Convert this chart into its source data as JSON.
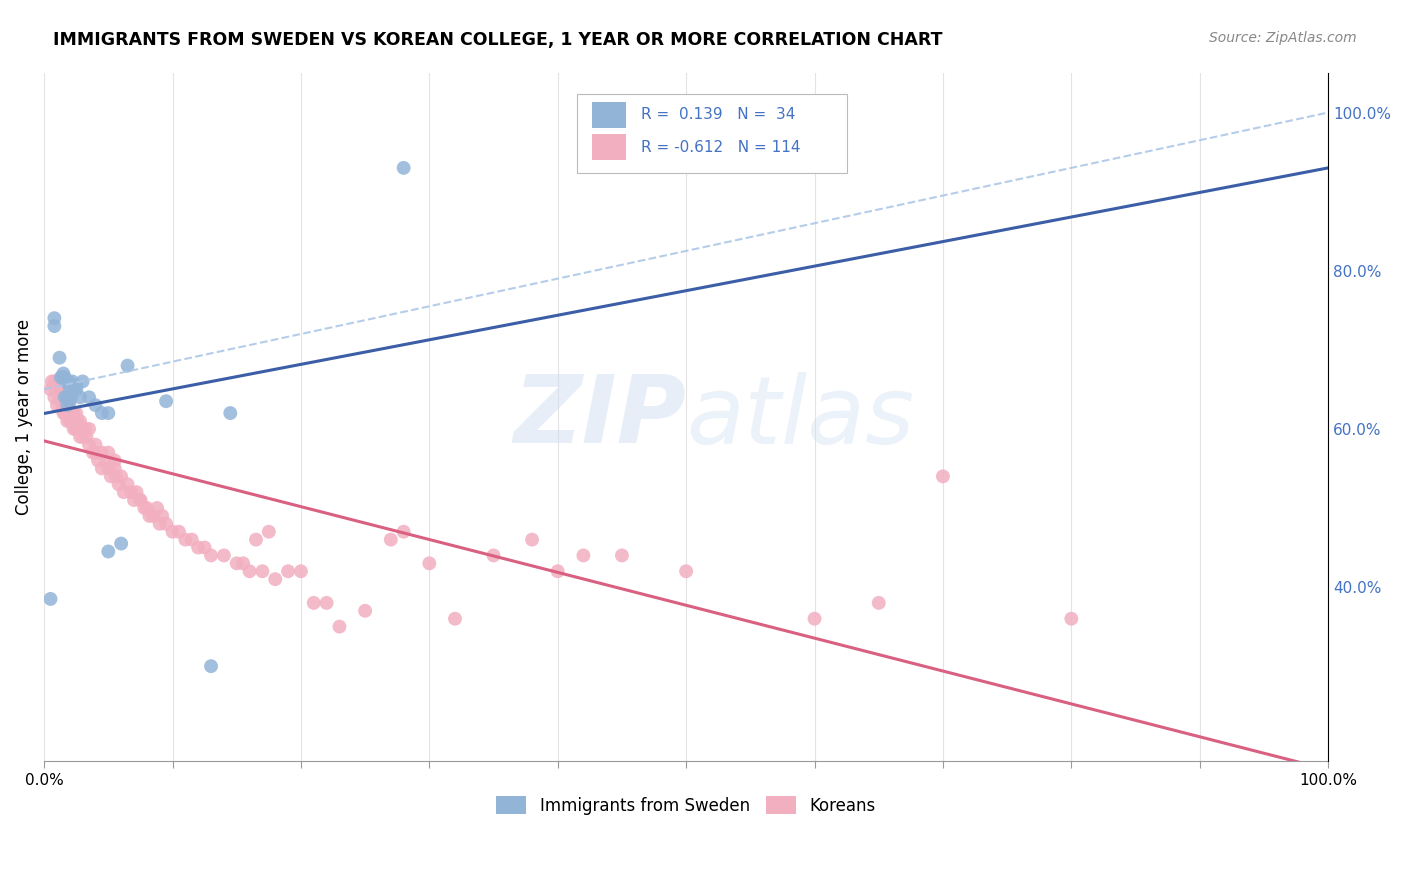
{
  "title": "IMMIGRANTS FROM SWEDEN VS KOREAN COLLEGE, 1 YEAR OR MORE CORRELATION CHART",
  "source": "Source: ZipAtlas.com",
  "ylabel": "College, 1 year or more",
  "right_yticks": [
    "40.0%",
    "60.0%",
    "80.0%",
    "100.0%"
  ],
  "right_ytick_vals": [
    40.0,
    60.0,
    80.0,
    100.0
  ],
  "watermark": "ZIPatlas",
  "blue_color": "#92b4d7",
  "pink_color": "#f2afc0",
  "blue_line_color": "#3b5ea6",
  "pink_line_color": "#d96080",
  "blue_dashed_color": "#aec8e8",
  "legend_text_color": "#4472c4",
  "sweden_points_x": [
    0.5,
    0.8,
    0.8,
    1.2,
    1.3,
    1.5,
    1.5,
    1.6,
    1.6,
    1.7,
    1.8,
    1.8,
    1.9,
    2.0,
    2.0,
    2.0,
    2.1,
    2.2,
    2.2,
    2.5,
    2.5,
    2.8,
    3.0,
    3.5,
    4.0,
    4.5,
    5.0,
    5.0,
    6.0,
    6.5,
    9.5,
    13.0,
    14.5,
    28.0
  ],
  "sweden_points_y": [
    38.5,
    73.0,
    74.0,
    69.0,
    66.5,
    66.5,
    67.0,
    64.0,
    66.5,
    66.0,
    63.0,
    64.0,
    66.0,
    63.5,
    64.0,
    65.0,
    64.0,
    66.0,
    65.5,
    65.0,
    65.5,
    64.0,
    66.0,
    64.0,
    63.0,
    62.0,
    62.0,
    44.5,
    45.5,
    68.0,
    63.5,
    30.0,
    62.0,
    93.0
  ],
  "korean_points_x": [
    0.5,
    0.6,
    0.8,
    0.8,
    0.9,
    1.0,
    1.0,
    1.2,
    1.3,
    1.3,
    1.4,
    1.5,
    1.5,
    1.5,
    1.5,
    1.6,
    1.6,
    1.6,
    1.6,
    1.7,
    1.7,
    1.8,
    1.8,
    1.8,
    1.8,
    1.9,
    1.9,
    2.0,
    2.0,
    2.0,
    2.1,
    2.2,
    2.2,
    2.3,
    2.3,
    2.4,
    2.5,
    2.5,
    2.5,
    2.6,
    2.7,
    2.8,
    2.8,
    3.0,
    3.0,
    3.2,
    3.3,
    3.5,
    3.5,
    3.8,
    4.0,
    4.0,
    4.2,
    4.5,
    4.5,
    4.8,
    5.0,
    5.0,
    5.2,
    5.5,
    5.5,
    5.6,
    5.8,
    6.0,
    6.2,
    6.5,
    6.8,
    7.0,
    7.2,
    7.5,
    7.5,
    7.8,
    8.0,
    8.2,
    8.5,
    8.8,
    9.0,
    9.2,
    9.5,
    10.0,
    10.5,
    11.0,
    11.5,
    12.0,
    12.5,
    13.0,
    14.0,
    15.0,
    15.5,
    16.0,
    16.5,
    17.0,
    17.5,
    18.0,
    19.0,
    20.0,
    21.0,
    22.0,
    23.0,
    25.0,
    27.0,
    28.0,
    30.0,
    32.0,
    35.0,
    38.0,
    40.0,
    42.0,
    45.0,
    50.0,
    60.0,
    65.0,
    70.0,
    80.0
  ],
  "korean_points_y": [
    65.0,
    66.0,
    66.0,
    64.0,
    65.0,
    63.0,
    66.0,
    64.0,
    65.0,
    66.0,
    63.0,
    64.0,
    62.0,
    65.0,
    63.0,
    64.0,
    63.0,
    62.0,
    64.0,
    63.0,
    63.0,
    62.0,
    63.0,
    62.0,
    61.0,
    63.0,
    62.0,
    64.0,
    62.0,
    61.0,
    62.0,
    61.0,
    62.0,
    60.0,
    62.0,
    61.0,
    60.0,
    62.0,
    60.0,
    61.0,
    60.0,
    59.0,
    61.0,
    59.0,
    60.0,
    60.0,
    59.0,
    60.0,
    58.0,
    57.0,
    58.0,
    57.0,
    56.0,
    57.0,
    55.0,
    56.0,
    57.0,
    55.0,
    54.0,
    55.0,
    56.0,
    54.0,
    53.0,
    54.0,
    52.0,
    53.0,
    52.0,
    51.0,
    52.0,
    51.0,
    51.0,
    50.0,
    50.0,
    49.0,
    49.0,
    50.0,
    48.0,
    49.0,
    48.0,
    47.0,
    47.0,
    46.0,
    46.0,
    45.0,
    45.0,
    44.0,
    44.0,
    43.0,
    43.0,
    42.0,
    46.0,
    42.0,
    47.0,
    41.0,
    42.0,
    42.0,
    38.0,
    38.0,
    35.0,
    37.0,
    46.0,
    47.0,
    43.0,
    36.0,
    44.0,
    46.0,
    42.0,
    44.0,
    44.0,
    42.0,
    36.0,
    38.0,
    54.0,
    36.0
  ],
  "xlim": [
    0.0,
    100.0
  ],
  "ylim": [
    18.0,
    105.0
  ],
  "background_color": "#ffffff",
  "grid_color": "#dddddd"
}
